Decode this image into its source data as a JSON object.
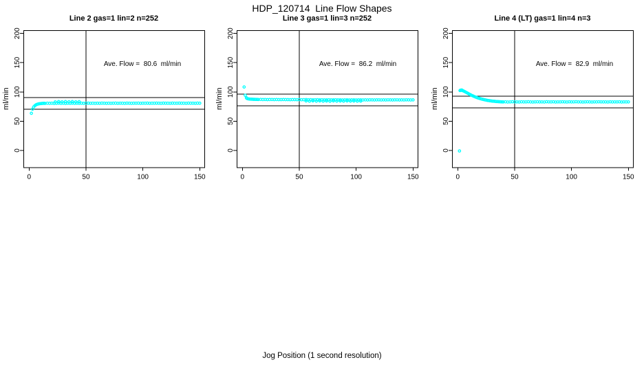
{
  "chart_data": {
    "type": "scatter",
    "title": "HDP_120714  Line Flow Shapes",
    "xlabel": "Jog Position (1 second resolution)",
    "ylabel": "ml/min",
    "x_ticks": [
      0,
      50,
      100,
      150
    ],
    "y_ticks": [
      0,
      50,
      100,
      150,
      200
    ],
    "xlim": [
      -5,
      154
    ],
    "ylim": [
      -30,
      206
    ],
    "grid": false,
    "legend": false,
    "point_color": "#00FFFF",
    "axis_color": "#000000",
    "vline_x": 50,
    "panels": [
      {
        "title": "Line 2 gas=1 lin=2 n=252",
        "n": 252,
        "ave_flow": 80.6,
        "ave_label": "Ave. Flow =  80.6  ml/min",
        "hlines": [
          90.6,
          70.6
        ],
        "points": [
          [
            2,
            63.5
          ],
          [
            3,
            70.5
          ],
          [
            4,
            74.3
          ],
          [
            5,
            76.4
          ],
          [
            6,
            77.9
          ],
          [
            7,
            78.8
          ],
          [
            8,
            79.4
          ],
          [
            9,
            79.8
          ],
          [
            10,
            80.1
          ],
          [
            11,
            80.3
          ],
          [
            12,
            80.4
          ],
          [
            13,
            80.5
          ],
          [
            14,
            80.4
          ],
          [
            16,
            80.7
          ],
          [
            18,
            80.5
          ],
          [
            20,
            80.8
          ],
          [
            22,
            80.4
          ],
          [
            24,
            80.6
          ],
          [
            26,
            80.9
          ],
          [
            28,
            80.5
          ],
          [
            30,
            80.7
          ],
          [
            32,
            80.4
          ],
          [
            34,
            80.8
          ],
          [
            36,
            80.6
          ],
          [
            38,
            80.9
          ],
          [
            40,
            80.5
          ],
          [
            42,
            80.7
          ],
          [
            44,
            80.6
          ],
          [
            46,
            80.8
          ],
          [
            48,
            80.5
          ],
          [
            50,
            80.7
          ],
          [
            52,
            80.9
          ],
          [
            54,
            80.6
          ],
          [
            56,
            80.8
          ],
          [
            58,
            80.5
          ],
          [
            60,
            80.7
          ],
          [
            62,
            80.6
          ],
          [
            64,
            80.9
          ],
          [
            66,
            80.7
          ],
          [
            68,
            80.5
          ],
          [
            70,
            80.8
          ],
          [
            72,
            80.6
          ],
          [
            74,
            80.7
          ],
          [
            76,
            80.9
          ],
          [
            78,
            80.6
          ],
          [
            80,
            80.8
          ],
          [
            82,
            80.7
          ],
          [
            84,
            80.5
          ],
          [
            86,
            80.9
          ],
          [
            88,
            80.7
          ],
          [
            90,
            80.6
          ],
          [
            92,
            80.8
          ],
          [
            94,
            80.7
          ],
          [
            96,
            80.9
          ],
          [
            98,
            80.6
          ],
          [
            100,
            80.8
          ],
          [
            102,
            80.7
          ],
          [
            104,
            80.9
          ],
          [
            106,
            80.6
          ],
          [
            108,
            80.8
          ],
          [
            110,
            80.7
          ],
          [
            112,
            80.9
          ],
          [
            114,
            80.8
          ],
          [
            116,
            80.6
          ],
          [
            118,
            80.9
          ],
          [
            120,
            80.7
          ],
          [
            122,
            80.8
          ],
          [
            124,
            80.6
          ],
          [
            126,
            80.9
          ],
          [
            128,
            80.7
          ],
          [
            130,
            80.8
          ],
          [
            132,
            80.9
          ],
          [
            134,
            80.7
          ],
          [
            136,
            80.8
          ],
          [
            138,
            80.6
          ],
          [
            140,
            80.9
          ],
          [
            142,
            80.7
          ],
          [
            144,
            80.8
          ],
          [
            146,
            80.6
          ],
          [
            148,
            80.9
          ],
          [
            150,
            80.7
          ],
          [
            23,
            83.0
          ],
          [
            26,
            83.4
          ],
          [
            29,
            83.1
          ],
          [
            32,
            83.5
          ],
          [
            35,
            83.2
          ],
          [
            38,
            83.4
          ],
          [
            41,
            83.1
          ],
          [
            44,
            83.3
          ]
        ]
      },
      {
        "title": "Line 3 gas=1 lin=3 n=252",
        "n": 252,
        "ave_flow": 86.2,
        "ave_label": "Ave. Flow =  86.2  ml/min",
        "hlines": [
          96.2,
          76.2
        ],
        "points": [
          [
            1.5,
            108.5
          ],
          [
            2.5,
            94.2
          ],
          [
            3.5,
            90.0
          ],
          [
            4,
            88.8
          ],
          [
            5,
            88.2
          ],
          [
            6,
            87.9
          ],
          [
            7,
            87.7
          ],
          [
            8,
            87.5
          ],
          [
            9,
            87.4
          ],
          [
            10,
            87.3
          ],
          [
            11,
            87.3
          ],
          [
            12,
            87.2
          ],
          [
            13,
            87.2
          ],
          [
            14,
            87.1
          ],
          [
            16,
            87.2
          ],
          [
            18,
            87.0
          ],
          [
            20,
            87.1
          ],
          [
            22,
            86.9
          ],
          [
            24,
            87.0
          ],
          [
            26,
            87.1
          ],
          [
            28,
            86.9
          ],
          [
            30,
            87.0
          ],
          [
            32,
            86.8
          ],
          [
            34,
            86.9
          ],
          [
            36,
            87.0
          ],
          [
            38,
            86.8
          ],
          [
            40,
            86.9
          ],
          [
            42,
            86.7
          ],
          [
            44,
            86.8
          ],
          [
            46,
            86.9
          ],
          [
            48,
            86.7
          ],
          [
            50,
            86.8
          ],
          [
            52,
            86.6
          ],
          [
            54,
            86.7
          ],
          [
            56,
            86.8
          ],
          [
            58,
            86.6
          ],
          [
            60,
            86.7
          ],
          [
            62,
            86.5
          ],
          [
            64,
            86.6
          ],
          [
            66,
            86.7
          ],
          [
            68,
            86.5
          ],
          [
            70,
            86.6
          ],
          [
            72,
            86.4
          ],
          [
            74,
            86.5
          ],
          [
            76,
            86.6
          ],
          [
            78,
            86.4
          ],
          [
            80,
            86.5
          ],
          [
            82,
            86.6
          ],
          [
            84,
            86.4
          ],
          [
            86,
            86.5
          ],
          [
            88,
            86.3
          ],
          [
            90,
            86.4
          ],
          [
            92,
            86.5
          ],
          [
            94,
            86.3
          ],
          [
            96,
            86.4
          ],
          [
            98,
            86.5
          ],
          [
            100,
            86.3
          ],
          [
            102,
            86.4
          ],
          [
            104,
            86.5
          ],
          [
            106,
            86.3
          ],
          [
            108,
            86.4
          ],
          [
            110,
            86.3
          ],
          [
            112,
            86.5
          ],
          [
            114,
            86.4
          ],
          [
            116,
            86.3
          ],
          [
            118,
            86.4
          ],
          [
            120,
            86.5
          ],
          [
            122,
            86.3
          ],
          [
            124,
            86.4
          ],
          [
            126,
            86.3
          ],
          [
            128,
            86.5
          ],
          [
            130,
            86.4
          ],
          [
            132,
            86.3
          ],
          [
            134,
            86.4
          ],
          [
            136,
            86.5
          ],
          [
            138,
            86.3
          ],
          [
            140,
            86.4
          ],
          [
            142,
            86.3
          ],
          [
            144,
            86.5
          ],
          [
            146,
            86.4
          ],
          [
            148,
            86.3
          ],
          [
            150,
            86.4
          ],
          [
            56,
            84.6
          ],
          [
            59,
            84.3
          ],
          [
            62,
            84.7
          ],
          [
            65,
            84.4
          ],
          [
            68,
            84.6
          ],
          [
            71,
            84.3
          ],
          [
            74,
            84.5
          ],
          [
            77,
            84.2
          ],
          [
            80,
            84.6
          ],
          [
            83,
            84.4
          ],
          [
            86,
            84.5
          ],
          [
            89,
            84.3
          ],
          [
            92,
            84.6
          ],
          [
            95,
            84.4
          ],
          [
            98,
            84.5
          ],
          [
            101,
            84.3
          ],
          [
            104,
            84.4
          ]
        ]
      },
      {
        "title": "Line 4 (LT) gas=1 lin=4 n=3",
        "n": 3,
        "ave_flow": 82.9,
        "ave_label": "Ave. Flow =  82.9  ml/min",
        "hlines": [
          92.9,
          72.9
        ],
        "points": [
          [
            1.5,
            -0.8
          ],
          [
            2,
            102.3
          ],
          [
            2.5,
            103.1
          ],
          [
            3,
            102.7
          ],
          [
            3.5,
            103.3
          ],
          [
            4,
            102.6
          ],
          [
            4.5,
            102.1
          ],
          [
            5,
            101.6
          ],
          [
            6,
            100.7
          ],
          [
            7,
            99.7
          ],
          [
            8,
            98.6
          ],
          [
            9,
            97.5
          ],
          [
            10,
            96.4
          ],
          [
            11,
            95.4
          ],
          [
            12,
            94.4
          ],
          [
            13,
            93.5
          ],
          [
            14,
            92.6
          ],
          [
            15,
            91.8
          ],
          [
            16,
            91.0
          ],
          [
            17,
            90.3
          ],
          [
            18,
            89.6
          ],
          [
            19,
            89.0
          ],
          [
            20,
            88.4
          ],
          [
            21,
            87.8
          ],
          [
            22,
            87.3
          ],
          [
            23,
            86.8
          ],
          [
            24,
            86.4
          ],
          [
            25,
            86.0
          ],
          [
            26,
            85.6
          ],
          [
            27,
            85.3
          ],
          [
            28,
            85.0
          ],
          [
            29,
            84.7
          ],
          [
            30,
            84.4
          ],
          [
            31,
            84.2
          ],
          [
            32,
            84.0
          ],
          [
            33,
            83.8
          ],
          [
            34,
            83.6
          ],
          [
            35,
            83.5
          ],
          [
            36,
            83.3
          ],
          [
            37,
            83.2
          ],
          [
            38,
            83.1
          ],
          [
            39,
            83.0
          ],
          [
            40,
            82.9
          ],
          [
            42,
            83.1
          ],
          [
            44,
            82.8
          ],
          [
            46,
            83.0
          ],
          [
            48,
            83.2
          ],
          [
            50,
            82.9
          ],
          [
            52,
            83.0
          ],
          [
            54,
            82.8
          ],
          [
            56,
            83.1
          ],
          [
            58,
            82.9
          ],
          [
            60,
            83.0
          ],
          [
            62,
            83.2
          ],
          [
            64,
            82.9
          ],
          [
            66,
            82.8
          ],
          [
            68,
            83.0
          ],
          [
            70,
            83.1
          ],
          [
            72,
            82.9
          ],
          [
            74,
            83.0
          ],
          [
            76,
            82.8
          ],
          [
            78,
            83.2
          ],
          [
            80,
            83.0
          ],
          [
            82,
            82.9
          ],
          [
            84,
            83.1
          ],
          [
            86,
            82.8
          ],
          [
            88,
            83.0
          ],
          [
            90,
            82.9
          ],
          [
            92,
            83.1
          ],
          [
            94,
            83.0
          ],
          [
            96,
            82.8
          ],
          [
            98,
            83.1
          ],
          [
            100,
            82.9
          ],
          [
            102,
            83.0
          ],
          [
            104,
            83.2
          ],
          [
            106,
            82.9
          ],
          [
            108,
            83.0
          ],
          [
            110,
            82.8
          ],
          [
            112,
            83.0
          ],
          [
            114,
            83.1
          ],
          [
            116,
            82.9
          ],
          [
            118,
            82.8
          ],
          [
            120,
            83.0
          ],
          [
            122,
            82.9
          ],
          [
            124,
            83.1
          ],
          [
            126,
            83.0
          ],
          [
            128,
            82.9
          ],
          [
            130,
            83.0
          ],
          [
            132,
            82.8
          ],
          [
            134,
            83.1
          ],
          [
            136,
            82.9
          ],
          [
            138,
            83.0
          ],
          [
            140,
            82.9
          ],
          [
            142,
            83.1
          ],
          [
            144,
            82.8
          ],
          [
            146,
            83.0
          ],
          [
            148,
            82.9
          ],
          [
            150,
            83.0
          ]
        ]
      }
    ]
  }
}
